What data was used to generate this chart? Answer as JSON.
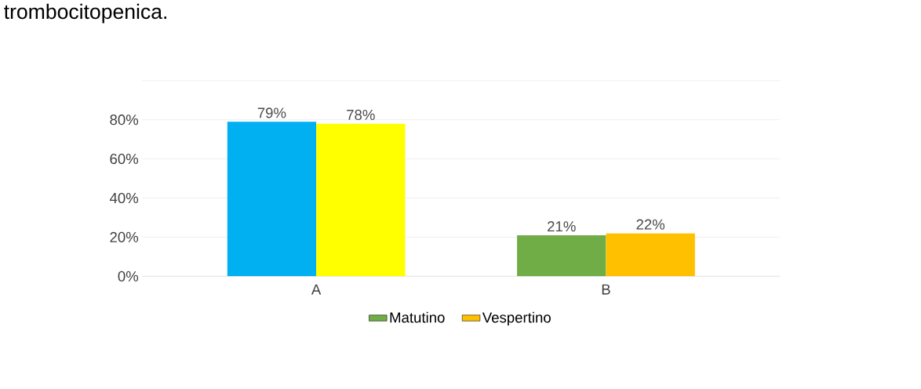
{
  "chart_data": {
    "type": "bar",
    "title": "trombocitopenica.",
    "categories": [
      "A",
      "B"
    ],
    "series": [
      {
        "name": "Matutino",
        "color": "#70ad47",
        "colors": [
          "#00b0f0",
          "#70ad47"
        ],
        "values": [
          79,
          21
        ],
        "value_labels": [
          "79%",
          "21%"
        ]
      },
      {
        "name": "Vespertino",
        "color": "#ffc000",
        "colors": [
          "#ffff00",
          "#ffc000"
        ],
        "values": [
          78,
          22
        ],
        "value_labels": [
          "78%",
          "22%"
        ]
      }
    ],
    "ylim": [
      0,
      100
    ],
    "yticks": [
      {
        "value": 0,
        "label": "0%"
      },
      {
        "value": 20,
        "label": "20%"
      },
      {
        "value": 40,
        "label": "40%"
      },
      {
        "value": 60,
        "label": "60%"
      },
      {
        "value": 80,
        "label": "80%"
      },
      {
        "value": 100,
        "label": null
      }
    ],
    "grid": "y",
    "legend": "bottom"
  }
}
